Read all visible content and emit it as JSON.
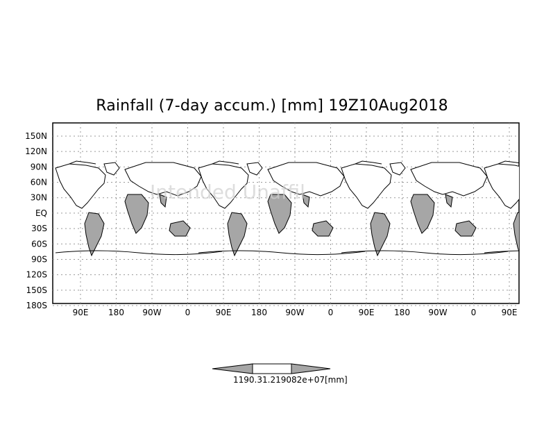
{
  "title": "Rainfall (7-day accum.) [mm] 19Z10Aug2018",
  "watermark": "Intended Unaffil",
  "y_ticks": [
    "150N",
    "120N",
    "90N",
    "60N",
    "30N",
    "EQ",
    "30S",
    "60S",
    "90S",
    "120S",
    "150S",
    "180S"
  ],
  "x_ticks": [
    "90E",
    "180",
    "90W",
    "0",
    "90E",
    "180",
    "90W",
    "0",
    "90E",
    "180",
    "90W",
    "0",
    "90E"
  ],
  "colorbar": {
    "label_left": "1190.3",
    "label_right": "1.219082e+07",
    "unit": "[mm]",
    "colors": [
      "#a6a6a6",
      "#ffffff",
      "#a6a6a6"
    ]
  }
}
